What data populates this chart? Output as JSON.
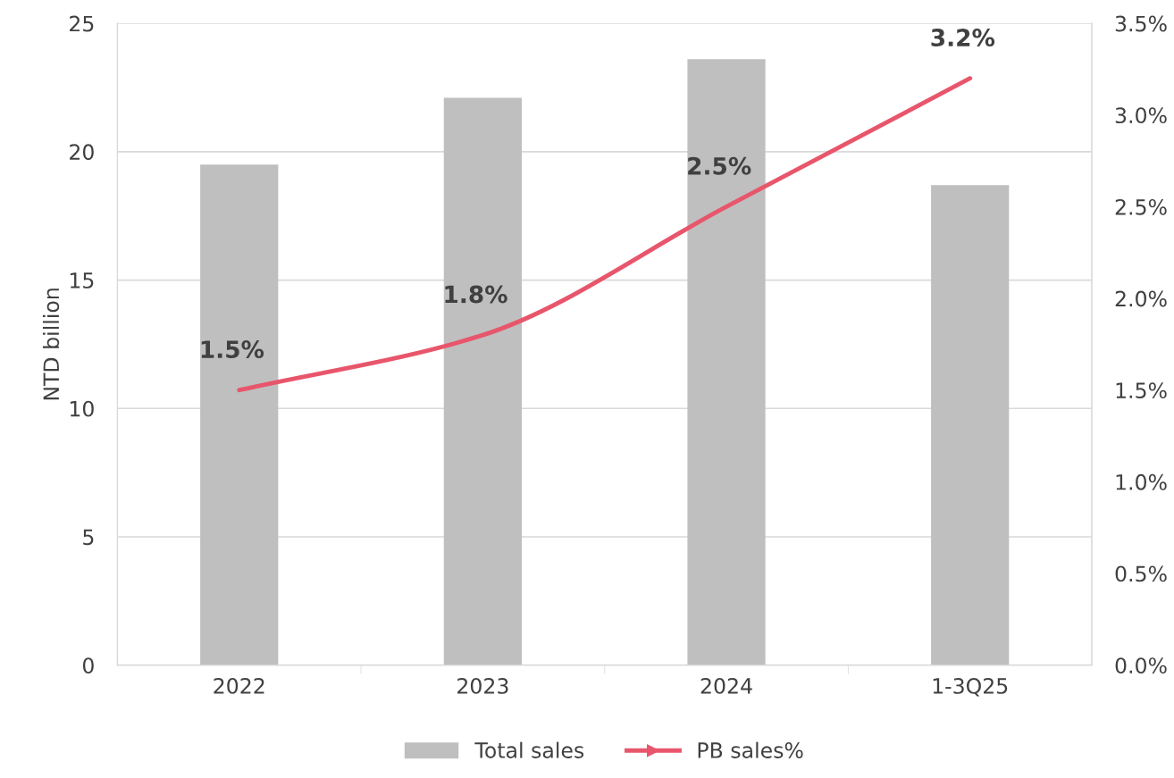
{
  "chart_data": {
    "type": "bar",
    "categories": [
      "2022",
      "2023",
      "2024",
      "1-3Q25"
    ],
    "ylabel": "NTD billion",
    "series": [
      {
        "name": "Total sales",
        "color": "#bfbfbf",
        "values": [
          19.5,
          22.1,
          23.6,
          18.7
        ]
      },
      {
        "name": "PB sales%",
        "type": "line",
        "axis": "y2",
        "color": "#e8566c",
        "values": [
          1.5,
          1.8,
          2.5,
          3.2
        ],
        "value_labels": [
          "1.5%",
          "1.8%",
          "2.5%",
          "3.2%"
        ]
      }
    ],
    "ylim": [
      0,
      25
    ],
    "yticks": [
      0,
      5,
      10,
      15,
      20,
      25
    ],
    "y2lim": [
      0,
      3.5
    ],
    "y2ticks": [
      {
        "value": 0,
        "label": "0.0%"
      },
      {
        "value": 0.5,
        "label": "0.5%"
      },
      {
        "value": 1.0,
        "label": "1.0%"
      },
      {
        "value": 1.5,
        "label": "1.5%"
      },
      {
        "value": 2.0,
        "label": "2.0%"
      },
      {
        "value": 2.5,
        "label": "2.5%"
      },
      {
        "value": 3.0,
        "label": "3.0%"
      },
      {
        "value": 3.5,
        "label": "3.5%"
      }
    ],
    "grid": "y",
    "legend": "bottom"
  }
}
